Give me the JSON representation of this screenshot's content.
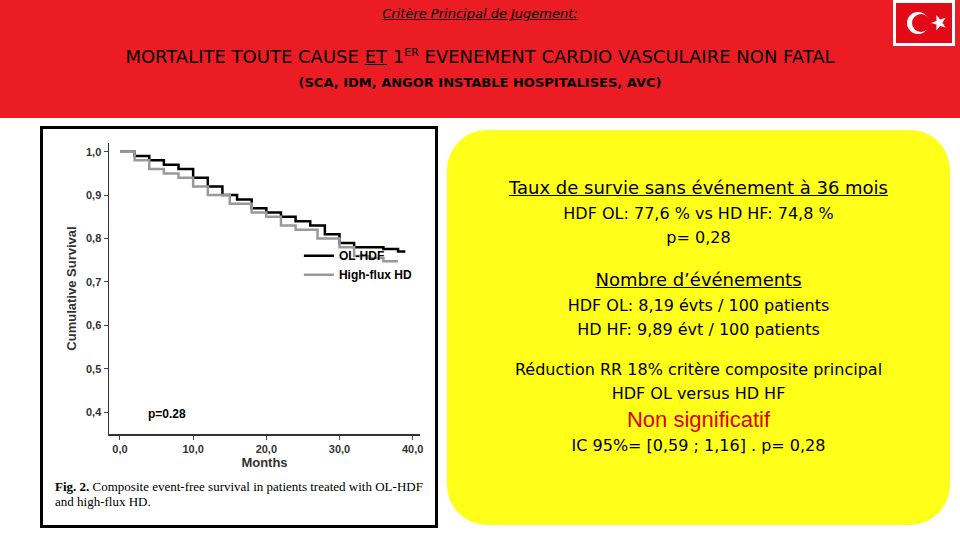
{
  "slide": {
    "header": {
      "kicker": "Critère Principal de Jugement:",
      "title_parts": [
        {
          "text": "MORTALITE TOUTE CAUSE "
        },
        {
          "text": "ET",
          "style": "underline"
        },
        {
          "text": " 1"
        },
        {
          "text": "ER",
          "style": "superscript"
        },
        {
          "text": " EVENEMENT CARDIO VASCULAIRE NON FATAL"
        }
      ],
      "subtitle": "(SCA, IDM, ANGOR INSTABLE HOSPITALISES, AVC)"
    },
    "caption": {
      "label": "Fig. 2.",
      "text": " Composite event-free survival in patients treated with OL-HDF and high-flux HD."
    },
    "box": [
      {
        "text": "Taux de survie sans événement à 36 mois",
        "style": "heading"
      },
      {
        "text": "HDF OL: 77,6 %  vs HD HF: 74,8 %",
        "style": "plain"
      },
      {
        "text": "p= 0,28",
        "style": "plain"
      },
      {
        "text": "Nombre d’événements",
        "style": "heading",
        "gap": true
      },
      {
        "text": "HDF OL:  8,19 évts / 100 patients",
        "style": "plain"
      },
      {
        "text": "HD HF:  9,89 évt / 100 patients",
        "style": "plain"
      },
      {
        "text": "Réduction RR 18% critère composite principal",
        "style": "plain",
        "gap": true
      },
      {
        "text": "HDF OL versus HD HF",
        "style": "plain"
      },
      {
        "text": "Non significatif",
        "style": "alert"
      },
      {
        "text": "IC 95%= [0,59 ; 1,16] . p= 0,28",
        "style": "plain"
      }
    ]
  },
  "chart_data": {
    "type": "line",
    "xlabel": "Months",
    "ylabel": "Cumulative Survival",
    "xlim": [
      -1.5,
      41
    ],
    "ylim": [
      0.35,
      1.02
    ],
    "xticks": [
      {
        "value": 0,
        "label": "0,0"
      },
      {
        "value": 10,
        "label": "10,0"
      },
      {
        "value": 20,
        "label": "20,0"
      },
      {
        "value": 30,
        "label": "30,0"
      },
      {
        "value": 40,
        "label": "40,0"
      }
    ],
    "yticks": [
      {
        "value": 0.4,
        "label": "0,4"
      },
      {
        "value": 0.5,
        "label": "0,5"
      },
      {
        "value": 0.6,
        "label": "0,6"
      },
      {
        "value": 0.7,
        "label": "0,7"
      },
      {
        "value": 0.8,
        "label": "0,8"
      },
      {
        "value": 0.9,
        "label": "0,9"
      },
      {
        "value": 1.0,
        "label": "1,0"
      }
    ],
    "grid": false,
    "legend": "right",
    "line_style": "step",
    "annotations": [
      {
        "text": "p=0.28"
      }
    ],
    "series": [
      {
        "name": "OL-HDF",
        "color": "#000000",
        "x": [
          0,
          2,
          4,
          6,
          8,
          10,
          12,
          14,
          16,
          18,
          20,
          22,
          24,
          26,
          28,
          30,
          32,
          34,
          36,
          38,
          39
        ],
        "values": [
          1.0,
          0.99,
          0.98,
          0.97,
          0.96,
          0.94,
          0.92,
          0.9,
          0.89,
          0.87,
          0.86,
          0.85,
          0.84,
          0.83,
          0.81,
          0.79,
          0.78,
          0.78,
          0.776,
          0.77,
          0.77
        ]
      },
      {
        "name": "High-flux HD",
        "color": "#999999",
        "x": [
          0,
          2,
          4,
          6,
          8,
          10,
          12,
          15,
          18,
          20,
          22,
          24,
          27,
          30,
          32,
          34,
          36,
          38
        ],
        "values": [
          1.0,
          0.98,
          0.96,
          0.95,
          0.94,
          0.92,
          0.9,
          0.88,
          0.86,
          0.85,
          0.83,
          0.82,
          0.8,
          0.78,
          0.76,
          0.755,
          0.748,
          0.748
        ]
      }
    ]
  }
}
